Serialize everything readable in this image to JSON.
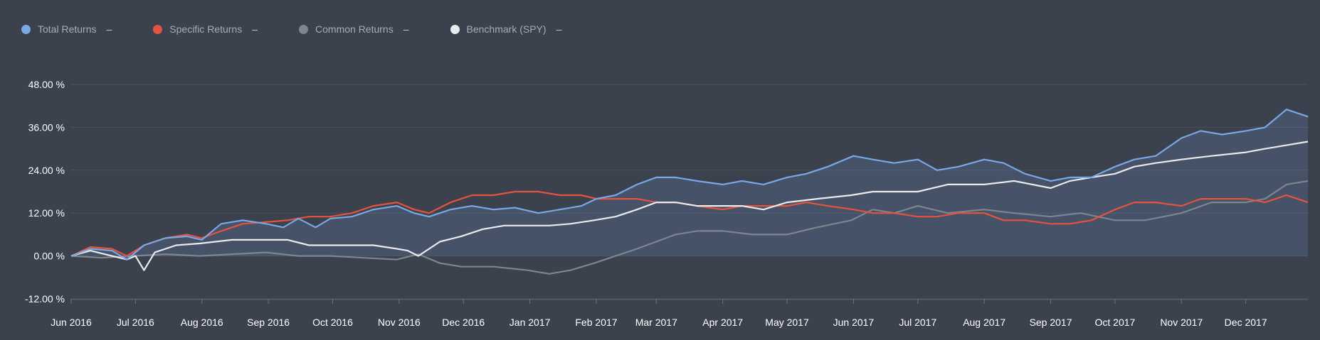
{
  "legend": [
    {
      "label": "Total Returns",
      "color": "#7aa8e6",
      "value": "–"
    },
    {
      "label": "Specific Returns",
      "color": "#e5533c",
      "value": "–"
    },
    {
      "label": "Common Returns",
      "color": "#7e858e",
      "value": "–"
    },
    {
      "label": "Benchmark (SPY)",
      "color": "#e9ebee",
      "value": "–"
    }
  ],
  "chart_data": {
    "type": "line",
    "x_ticks": [
      "Jun 2016",
      "Jul 2016",
      "Aug 2016",
      "Sep 2016",
      "Oct 2016",
      "Nov 2016",
      "Dec 2016",
      "Jan 2017",
      "Feb 2017",
      "Mar 2017",
      "Apr 2017",
      "May 2017",
      "Jun 2017",
      "Jul 2017",
      "Aug 2017",
      "Sep 2017",
      "Oct 2017",
      "Nov 2017",
      "Dec 2017"
    ],
    "y_ticks": [
      "48.00 %",
      "36.00 %",
      "24.00 %",
      "12.00 %",
      "0.00 %",
      "-12.00 %"
    ],
    "y_tick_values": [
      48,
      36,
      24,
      12,
      0,
      -12
    ],
    "ylim": [
      -12,
      48
    ],
    "x_start": "2016-06-01",
    "x_end": "2017-12-30",
    "grid": true,
    "legend_position": "top-left",
    "series": [
      {
        "name": "Total Returns",
        "color": "#7aa8e6",
        "fill": true,
        "points": [
          [
            "2016-06-01",
            0
          ],
          [
            "2016-06-10",
            2
          ],
          [
            "2016-06-20",
            1.5
          ],
          [
            "2016-06-27",
            -1
          ],
          [
            "2016-07-05",
            3
          ],
          [
            "2016-07-15",
            5
          ],
          [
            "2016-07-25",
            5.5
          ],
          [
            "2016-08-01",
            4.5
          ],
          [
            "2016-08-10",
            9
          ],
          [
            "2016-08-20",
            10
          ],
          [
            "2016-08-31",
            9
          ],
          [
            "2016-09-08",
            8
          ],
          [
            "2016-09-15",
            10.5
          ],
          [
            "2016-09-23",
            8
          ],
          [
            "2016-09-30",
            10.5
          ],
          [
            "2016-10-10",
            11
          ],
          [
            "2016-10-20",
            13
          ],
          [
            "2016-10-31",
            14
          ],
          [
            "2016-11-08",
            12
          ],
          [
            "2016-11-15",
            11
          ],
          [
            "2016-11-25",
            13
          ],
          [
            "2016-12-05",
            14
          ],
          [
            "2016-12-15",
            13
          ],
          [
            "2016-12-25",
            13.5
          ],
          [
            "2017-01-05",
            12
          ],
          [
            "2017-01-15",
            13
          ],
          [
            "2017-01-25",
            14
          ],
          [
            "2017-02-01",
            16
          ],
          [
            "2017-02-10",
            17
          ],
          [
            "2017-02-20",
            20
          ],
          [
            "2017-03-01",
            22
          ],
          [
            "2017-03-10",
            22
          ],
          [
            "2017-03-20",
            21
          ],
          [
            "2017-04-01",
            20
          ],
          [
            "2017-04-10",
            21
          ],
          [
            "2017-04-20",
            20
          ],
          [
            "2017-05-01",
            22
          ],
          [
            "2017-05-10",
            23
          ],
          [
            "2017-05-20",
            25
          ],
          [
            "2017-06-01",
            28
          ],
          [
            "2017-06-10",
            27
          ],
          [
            "2017-06-20",
            26
          ],
          [
            "2017-07-01",
            27
          ],
          [
            "2017-07-10",
            24
          ],
          [
            "2017-07-20",
            25
          ],
          [
            "2017-08-01",
            27
          ],
          [
            "2017-08-10",
            26
          ],
          [
            "2017-08-20",
            23
          ],
          [
            "2017-09-01",
            21
          ],
          [
            "2017-09-10",
            22
          ],
          [
            "2017-09-20",
            22
          ],
          [
            "2017-10-01",
            25
          ],
          [
            "2017-10-10",
            27
          ],
          [
            "2017-10-20",
            28
          ],
          [
            "2017-11-01",
            33
          ],
          [
            "2017-11-10",
            35
          ],
          [
            "2017-11-20",
            34
          ],
          [
            "2017-12-01",
            35
          ],
          [
            "2017-12-10",
            36
          ],
          [
            "2017-12-20",
            41
          ],
          [
            "2017-12-30",
            39
          ]
        ]
      },
      {
        "name": "Specific Returns",
        "color": "#e5533c",
        "fill": false,
        "points": [
          [
            "2016-06-01",
            0
          ],
          [
            "2016-06-10",
            2.5
          ],
          [
            "2016-06-20",
            2
          ],
          [
            "2016-06-27",
            0
          ],
          [
            "2016-07-05",
            3
          ],
          [
            "2016-07-15",
            5
          ],
          [
            "2016-07-25",
            6
          ],
          [
            "2016-08-01",
            5
          ],
          [
            "2016-08-10",
            7
          ],
          [
            "2016-08-20",
            9
          ],
          [
            "2016-08-31",
            9.5
          ],
          [
            "2016-09-10",
            10
          ],
          [
            "2016-09-20",
            11
          ],
          [
            "2016-09-30",
            11
          ],
          [
            "2016-10-10",
            12
          ],
          [
            "2016-10-20",
            14
          ],
          [
            "2016-10-31",
            15
          ],
          [
            "2016-11-08",
            13
          ],
          [
            "2016-11-15",
            12
          ],
          [
            "2016-11-25",
            15
          ],
          [
            "2016-12-05",
            17
          ],
          [
            "2016-12-15",
            17
          ],
          [
            "2016-12-25",
            18
          ],
          [
            "2017-01-05",
            18
          ],
          [
            "2017-01-15",
            17
          ],
          [
            "2017-01-25",
            17
          ],
          [
            "2017-02-01",
            16
          ],
          [
            "2017-02-10",
            16
          ],
          [
            "2017-02-20",
            16
          ],
          [
            "2017-03-01",
            15
          ],
          [
            "2017-03-10",
            15
          ],
          [
            "2017-03-20",
            14
          ],
          [
            "2017-04-01",
            13
          ],
          [
            "2017-04-10",
            14
          ],
          [
            "2017-04-20",
            14
          ],
          [
            "2017-05-01",
            14
          ],
          [
            "2017-05-10",
            15
          ],
          [
            "2017-05-20",
            14
          ],
          [
            "2017-06-01",
            13
          ],
          [
            "2017-06-10",
            12
          ],
          [
            "2017-06-20",
            12
          ],
          [
            "2017-07-01",
            11
          ],
          [
            "2017-07-10",
            11
          ],
          [
            "2017-07-20",
            12
          ],
          [
            "2017-08-01",
            12
          ],
          [
            "2017-08-10",
            10
          ],
          [
            "2017-08-20",
            10
          ],
          [
            "2017-09-01",
            9
          ],
          [
            "2017-09-10",
            9
          ],
          [
            "2017-09-20",
            10
          ],
          [
            "2017-10-01",
            13
          ],
          [
            "2017-10-10",
            15
          ],
          [
            "2017-10-20",
            15
          ],
          [
            "2017-11-01",
            14
          ],
          [
            "2017-11-10",
            16
          ],
          [
            "2017-11-20",
            16
          ],
          [
            "2017-12-01",
            16
          ],
          [
            "2017-12-10",
            15
          ],
          [
            "2017-12-20",
            17
          ],
          [
            "2017-12-30",
            15
          ]
        ]
      },
      {
        "name": "Common Returns",
        "color": "#7e858e",
        "fill": false,
        "points": [
          [
            "2016-06-01",
            0
          ],
          [
            "2016-06-15",
            -0.5
          ],
          [
            "2016-06-30",
            0
          ],
          [
            "2016-07-15",
            0.5
          ],
          [
            "2016-07-31",
            0
          ],
          [
            "2016-08-15",
            0.5
          ],
          [
            "2016-08-31",
            1
          ],
          [
            "2016-09-15",
            0
          ],
          [
            "2016-09-30",
            0
          ],
          [
            "2016-10-15",
            -0.5
          ],
          [
            "2016-10-31",
            -1
          ],
          [
            "2016-11-10",
            0.5
          ],
          [
            "2016-11-20",
            -2
          ],
          [
            "2016-11-30",
            -3
          ],
          [
            "2016-12-15",
            -3
          ],
          [
            "2016-12-31",
            -4
          ],
          [
            "2017-01-10",
            -5
          ],
          [
            "2017-01-20",
            -4
          ],
          [
            "2017-01-31",
            -2
          ],
          [
            "2017-02-10",
            0
          ],
          [
            "2017-02-20",
            2
          ],
          [
            "2017-03-01",
            4
          ],
          [
            "2017-03-10",
            6
          ],
          [
            "2017-03-20",
            7
          ],
          [
            "2017-04-01",
            7
          ],
          [
            "2017-04-15",
            6
          ],
          [
            "2017-05-01",
            6
          ],
          [
            "2017-05-15",
            8
          ],
          [
            "2017-05-31",
            10
          ],
          [
            "2017-06-10",
            13
          ],
          [
            "2017-06-20",
            12
          ],
          [
            "2017-07-01",
            14
          ],
          [
            "2017-07-15",
            12
          ],
          [
            "2017-08-01",
            13
          ],
          [
            "2017-08-15",
            12
          ],
          [
            "2017-09-01",
            11
          ],
          [
            "2017-09-15",
            12
          ],
          [
            "2017-10-01",
            10
          ],
          [
            "2017-10-15",
            10
          ],
          [
            "2017-11-01",
            12
          ],
          [
            "2017-11-15",
            15
          ],
          [
            "2017-12-01",
            15
          ],
          [
            "2017-12-10",
            16
          ],
          [
            "2017-12-20",
            20
          ],
          [
            "2017-12-30",
            21
          ]
        ]
      },
      {
        "name": "Benchmark (SPY)",
        "color": "#e9ebee",
        "fill": false,
        "points": [
          [
            "2016-06-01",
            0
          ],
          [
            "2016-06-10",
            1.5
          ],
          [
            "2016-06-20",
            0
          ],
          [
            "2016-06-27",
            -1
          ],
          [
            "2016-07-01",
            0
          ],
          [
            "2016-07-05",
            -4
          ],
          [
            "2016-07-10",
            1
          ],
          [
            "2016-07-20",
            3
          ],
          [
            "2016-07-31",
            3.5
          ],
          [
            "2016-08-15",
            4.5
          ],
          [
            "2016-08-31",
            4.5
          ],
          [
            "2016-09-10",
            4.5
          ],
          [
            "2016-09-20",
            3
          ],
          [
            "2016-09-30",
            3
          ],
          [
            "2016-10-10",
            3
          ],
          [
            "2016-10-20",
            3
          ],
          [
            "2016-10-31",
            2
          ],
          [
            "2016-11-05",
            1.5
          ],
          [
            "2016-11-10",
            0
          ],
          [
            "2016-11-20",
            4
          ],
          [
            "2016-11-30",
            5.5
          ],
          [
            "2016-12-10",
            7.5
          ],
          [
            "2016-12-20",
            8.5
          ],
          [
            "2016-12-31",
            8.5
          ],
          [
            "2017-01-10",
            8.5
          ],
          [
            "2017-01-20",
            9
          ],
          [
            "2017-01-31",
            10
          ],
          [
            "2017-02-10",
            11
          ],
          [
            "2017-02-20",
            13
          ],
          [
            "2017-03-01",
            15
          ],
          [
            "2017-03-10",
            15
          ],
          [
            "2017-03-20",
            14
          ],
          [
            "2017-04-01",
            14
          ],
          [
            "2017-04-10",
            14
          ],
          [
            "2017-04-20",
            13
          ],
          [
            "2017-05-01",
            15
          ],
          [
            "2017-05-15",
            16
          ],
          [
            "2017-05-31",
            17
          ],
          [
            "2017-06-10",
            18
          ],
          [
            "2017-06-20",
            18
          ],
          [
            "2017-07-01",
            18
          ],
          [
            "2017-07-15",
            20
          ],
          [
            "2017-08-01",
            20
          ],
          [
            "2017-08-15",
            21
          ],
          [
            "2017-09-01",
            19
          ],
          [
            "2017-09-10",
            21
          ],
          [
            "2017-09-20",
            22
          ],
          [
            "2017-10-01",
            23
          ],
          [
            "2017-10-10",
            25
          ],
          [
            "2017-10-20",
            26
          ],
          [
            "2017-11-01",
            27
          ],
          [
            "2017-11-15",
            28
          ],
          [
            "2017-12-01",
            29
          ],
          [
            "2017-12-10",
            30
          ],
          [
            "2017-12-20",
            31
          ],
          [
            "2017-12-30",
            32
          ]
        ]
      }
    ]
  }
}
